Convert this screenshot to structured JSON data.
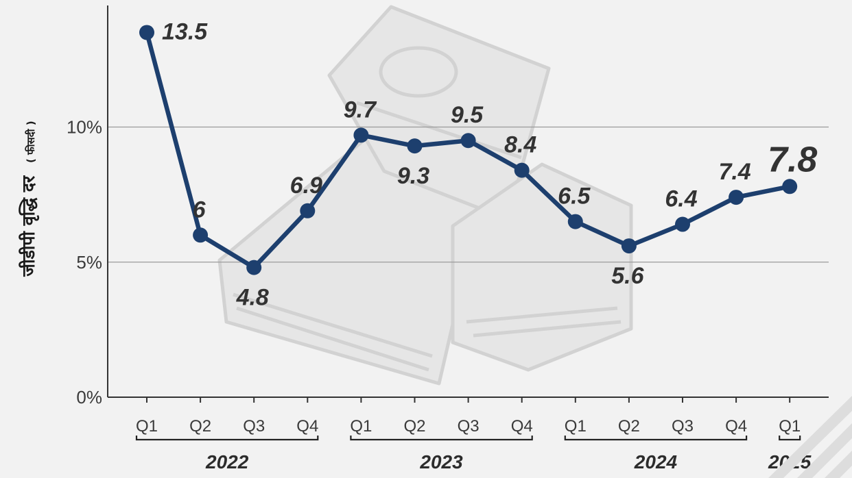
{
  "chart_data": {
    "type": "line",
    "ylabel": "जीडीपी वृद्धि दर",
    "ylabel_unit": "( फीसदी )",
    "ylim": [
      0,
      14.5
    ],
    "yticks": [
      {
        "value": 0,
        "label": "0%"
      },
      {
        "value": 5,
        "label": "5%"
      },
      {
        "value": 10,
        "label": "10%"
      }
    ],
    "grid": true,
    "categories": [
      "Q1",
      "Q2",
      "Q3",
      "Q4",
      "Q1",
      "Q2",
      "Q3",
      "Q4",
      "Q1",
      "Q2",
      "Q3",
      "Q4",
      "Q1"
    ],
    "year_groups": [
      {
        "label": "2022",
        "start": 0,
        "end": 3
      },
      {
        "label": "2023",
        "start": 4,
        "end": 7
      },
      {
        "label": "2024",
        "start": 8,
        "end": 11
      },
      {
        "label": "2025",
        "start": 12,
        "end": 12
      }
    ],
    "series": [
      {
        "values": [
          13.5,
          6,
          4.8,
          6.9,
          9.7,
          9.3,
          9.5,
          8.4,
          6.5,
          5.6,
          6.4,
          7.4,
          7.8
        ],
        "labels": [
          "13.5",
          "6",
          "4.8",
          "6.9",
          "9.7",
          "9.3",
          "9.5",
          "8.4",
          "6.5",
          "5.6",
          "6.4",
          "7.4",
          "7.8"
        ],
        "label_positions": [
          "right",
          "above",
          "below",
          "above",
          "above",
          "below",
          "above",
          "above",
          "above",
          "below",
          "above",
          "above",
          "above"
        ],
        "highlight_index": 12
      }
    ],
    "colors": {
      "line": "#1d3f6e",
      "highlight": "#c8102e",
      "grid": "#9a9a9a",
      "axis": "#333333",
      "background": "#f2f2f2",
      "watermark": "#dedede"
    },
    "background_icon": "money-stack-icon"
  }
}
